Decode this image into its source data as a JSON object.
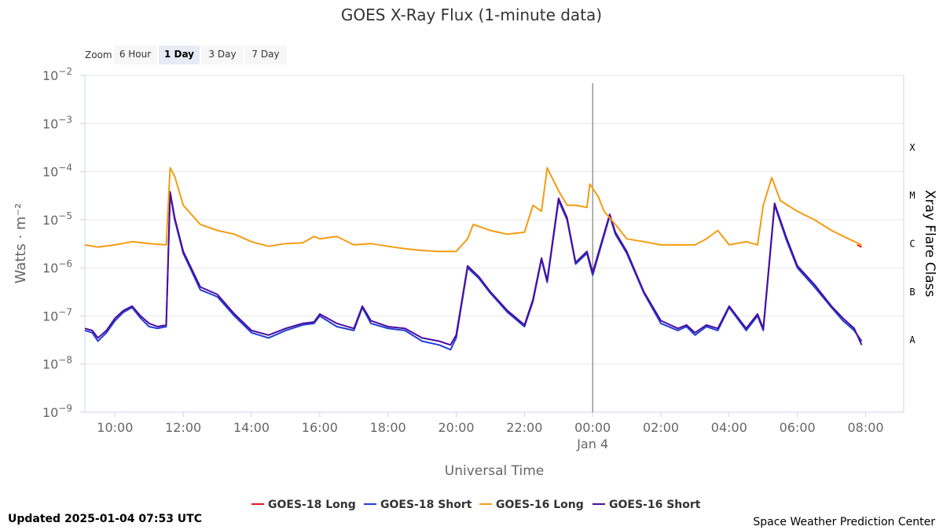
{
  "header": {
    "title": "GOES X-Ray Flux (1-minute data)"
  },
  "zoom": {
    "label": "Zoom",
    "options": [
      {
        "label": "6 Hour",
        "active": false
      },
      {
        "label": "1 Day",
        "active": true
      },
      {
        "label": "3 Day",
        "active": false
      },
      {
        "label": "7 Day",
        "active": false
      }
    ]
  },
  "footer": {
    "updated": "Updated 2025-01-04 07:53 UTC",
    "credit": "Space Weather Prediction Center"
  },
  "chart_data": {
    "type": "line",
    "title": "GOES X-Ray Flux (1-minute data)",
    "xlabel": "Universal Time",
    "ylabel": "Watts · m⁻²",
    "y_scale": "log",
    "ylim": [
      1e-09,
      0.01
    ],
    "xlim": [
      "2025-01-03 09:07",
      "2025-01-04 09:07"
    ],
    "x_ticks": [
      "10:00",
      "12:00",
      "14:00",
      "16:00",
      "18:00",
      "20:00",
      "22:00",
      "00:00",
      "02:00",
      "04:00",
      "06:00",
      "08:00"
    ],
    "x_tick_times": [
      "2025-01-03 10:00",
      "2025-01-03 12:00",
      "2025-01-03 14:00",
      "2025-01-03 16:00",
      "2025-01-03 18:00",
      "2025-01-03 20:00",
      "2025-01-03 22:00",
      "2025-01-04 00:00",
      "2025-01-04 02:00",
      "2025-01-04 04:00",
      "2025-01-04 06:00",
      "2025-01-04 08:00"
    ],
    "date_label": {
      "text": "Jan 4",
      "time": "2025-01-04 00:00"
    },
    "y_ticks": [
      {
        "base": "10",
        "exp": "−9",
        "value": 1e-09
      },
      {
        "base": "10",
        "exp": "−8",
        "value": 1e-08
      },
      {
        "base": "10",
        "exp": "−7",
        "value": 1e-07
      },
      {
        "base": "10",
        "exp": "−6",
        "value": 1e-06
      },
      {
        "base": "10",
        "exp": "−5",
        "value": 1e-05
      },
      {
        "base": "10",
        "exp": "−4",
        "value": 0.0001
      },
      {
        "base": "10",
        "exp": "−3",
        "value": 0.001
      },
      {
        "base": "10",
        "exp": "−2",
        "value": 0.01
      }
    ],
    "flare_class_axis": {
      "title": "Xray Flare Class",
      "classes": [
        {
          "label": "A",
          "value": 3.16e-08
        },
        {
          "label": "B",
          "value": 3.16e-07
        },
        {
          "label": "C",
          "value": 3.16e-06
        },
        {
          "label": "M",
          "value": 3.16e-05
        },
        {
          "label": "X",
          "value": 0.000316
        }
      ]
    },
    "day_boundary": "2025-01-04 00:00",
    "grid": true,
    "legend_position": "bottom-center",
    "series": [
      {
        "name": "GOES-18 Long",
        "color": "#e41a1c",
        "x": [
          "2025-01-04 07:45",
          "2025-01-04 07:53"
        ],
        "y": [
          3e-06,
          2.7e-06
        ]
      },
      {
        "name": "GOES-18 Short",
        "color": "#1f3fd6",
        "x": [
          "2025-01-03 09:07",
          "2025-01-03 09:20",
          "2025-01-03 09:30",
          "2025-01-03 09:45",
          "2025-01-03 10:00",
          "2025-01-03 10:15",
          "2025-01-03 10:30",
          "2025-01-03 10:45",
          "2025-01-03 11:00",
          "2025-01-03 11:15",
          "2025-01-03 11:30",
          "2025-01-03 11:37",
          "2025-01-03 11:45",
          "2025-01-03 12:00",
          "2025-01-03 12:30",
          "2025-01-03 13:00",
          "2025-01-03 13:30",
          "2025-01-03 14:00",
          "2025-01-03 14:30",
          "2025-01-03 15:00",
          "2025-01-03 15:30",
          "2025-01-03 15:50",
          "2025-01-03 16:00",
          "2025-01-03 16:30",
          "2025-01-03 17:00",
          "2025-01-03 17:15",
          "2025-01-03 17:30",
          "2025-01-03 18:00",
          "2025-01-03 18:30",
          "2025-01-03 19:00",
          "2025-01-03 19:30",
          "2025-01-03 19:50",
          "2025-01-03 20:00",
          "2025-01-03 20:20",
          "2025-01-03 20:40",
          "2025-01-03 21:00",
          "2025-01-03 21:30",
          "2025-01-03 22:00",
          "2025-01-03 22:15",
          "2025-01-03 22:30",
          "2025-01-03 22:40",
          "2025-01-03 23:00",
          "2025-01-03 23:15",
          "2025-01-03 23:30",
          "2025-01-03 23:50",
          "2025-01-04 00:00",
          "2025-01-04 00:30",
          "2025-01-04 00:40",
          "2025-01-04 01:00",
          "2025-01-04 01:30",
          "2025-01-04 02:00",
          "2025-01-04 02:30",
          "2025-01-04 02:45",
          "2025-01-04 03:00",
          "2025-01-04 03:20",
          "2025-01-04 03:40",
          "2025-01-04 04:00",
          "2025-01-04 04:30",
          "2025-01-04 04:50",
          "2025-01-04 05:00",
          "2025-01-04 05:20",
          "2025-01-04 05:40",
          "2025-01-04 06:00",
          "2025-01-04 06:30",
          "2025-01-04 07:00",
          "2025-01-04 07:20",
          "2025-01-04 07:40",
          "2025-01-04 07:53"
        ],
        "y": [
          5e-08,
          4.5e-08,
          3e-08,
          4.5e-08,
          8e-08,
          1.2e-07,
          1.5e-07,
          9e-08,
          6e-08,
          5.5e-08,
          6e-08,
          3.5e-05,
          1e-05,
          2e-06,
          3.5e-07,
          2.5e-07,
          1e-07,
          4.5e-08,
          3.5e-08,
          5e-08,
          6.5e-08,
          7e-08,
          1e-07,
          6e-08,
          5e-08,
          1.5e-07,
          7e-08,
          5.5e-08,
          5e-08,
          3e-08,
          2.5e-08,
          2e-08,
          3.5e-08,
          1e-06,
          6e-07,
          3e-07,
          1.2e-07,
          6e-08,
          2e-07,
          1.5e-06,
          5e-07,
          2.5e-05,
          1e-05,
          1.2e-06,
          2e-06,
          7e-07,
          1.2e-05,
          5e-06,
          2e-06,
          3e-07,
          7e-08,
          5e-08,
          6e-08,
          4e-08,
          6e-08,
          5e-08,
          1.5e-07,
          5e-08,
          1e-07,
          5e-08,
          2e-05,
          4e-06,
          1e-06,
          4e-07,
          1.5e-07,
          8e-08,
          5e-08,
          3e-08
        ]
      },
      {
        "name": "GOES-16 Long",
        "color": "#f39c12",
        "x": [
          "2025-01-03 09:07",
          "2025-01-03 09:30",
          "2025-01-03 10:00",
          "2025-01-03 10:30",
          "2025-01-03 11:00",
          "2025-01-03 11:30",
          "2025-01-03 11:37",
          "2025-01-03 11:45",
          "2025-01-03 12:00",
          "2025-01-03 12:30",
          "2025-01-03 13:00",
          "2025-01-03 13:30",
          "2025-01-03 14:00",
          "2025-01-03 14:30",
          "2025-01-03 15:00",
          "2025-01-03 15:30",
          "2025-01-03 15:50",
          "2025-01-03 16:00",
          "2025-01-03 16:30",
          "2025-01-03 17:00",
          "2025-01-03 17:30",
          "2025-01-03 18:00",
          "2025-01-03 18:30",
          "2025-01-03 19:00",
          "2025-01-03 19:30",
          "2025-01-03 20:00",
          "2025-01-03 20:20",
          "2025-01-03 20:30",
          "2025-01-03 21:00",
          "2025-01-03 21:30",
          "2025-01-03 22:00",
          "2025-01-03 22:15",
          "2025-01-03 22:30",
          "2025-01-03 22:40",
          "2025-01-03 23:00",
          "2025-01-03 23:15",
          "2025-01-03 23:30",
          "2025-01-03 23:50",
          "2025-01-03 23:55",
          "2025-01-04 00:10",
          "2025-01-04 00:20",
          "2025-01-04 00:40",
          "2025-01-04 01:00",
          "2025-01-04 01:30",
          "2025-01-04 02:00",
          "2025-01-04 02:30",
          "2025-01-04 03:00",
          "2025-01-04 03:20",
          "2025-01-04 03:40",
          "2025-01-04 04:00",
          "2025-01-04 04:30",
          "2025-01-04 04:50",
          "2025-01-04 05:00",
          "2025-01-04 05:15",
          "2025-01-04 05:30",
          "2025-01-04 06:00",
          "2025-01-04 06:30",
          "2025-01-04 07:00",
          "2025-01-04 07:30",
          "2025-01-04 07:53"
        ],
        "y": [
          3e-06,
          2.7e-06,
          3e-06,
          3.5e-06,
          3.2e-06,
          3e-06,
          0.00012,
          8e-05,
          2e-05,
          8e-06,
          6e-06,
          5e-06,
          3.5e-06,
          2.8e-06,
          3.2e-06,
          3.3e-06,
          4.5e-06,
          4e-06,
          4.5e-06,
          3e-06,
          3.2e-06,
          2.8e-06,
          2.5e-06,
          2.3e-06,
          2.2e-06,
          2.2e-06,
          4e-06,
          8e-06,
          6e-06,
          5e-06,
          5.5e-06,
          2e-05,
          1.5e-05,
          0.00012,
          4e-05,
          2e-05,
          2e-05,
          1.8e-05,
          5.5e-05,
          3e-05,
          1.5e-05,
          8e-06,
          4e-06,
          3.5e-06,
          3e-06,
          3e-06,
          3e-06,
          4e-06,
          6e-06,
          3e-06,
          3.5e-06,
          3e-06,
          2e-05,
          7.5e-05,
          2.5e-05,
          1.5e-05,
          1e-05,
          6e-06,
          4e-06,
          3e-06
        ]
      },
      {
        "name": "GOES-16 Short",
        "color": "#4b0c9e",
        "x": [
          "2025-01-03 09:07",
          "2025-01-03 09:20",
          "2025-01-03 09:30",
          "2025-01-03 09:45",
          "2025-01-03 10:00",
          "2025-01-03 10:15",
          "2025-01-03 10:30",
          "2025-01-03 10:45",
          "2025-01-03 11:00",
          "2025-01-03 11:15",
          "2025-01-03 11:30",
          "2025-01-03 11:37",
          "2025-01-03 11:45",
          "2025-01-03 12:00",
          "2025-01-03 12:30",
          "2025-01-03 13:00",
          "2025-01-03 13:30",
          "2025-01-03 14:00",
          "2025-01-03 14:30",
          "2025-01-03 15:00",
          "2025-01-03 15:30",
          "2025-01-03 15:50",
          "2025-01-03 16:00",
          "2025-01-03 16:30",
          "2025-01-03 17:00",
          "2025-01-03 17:15",
          "2025-01-03 17:30",
          "2025-01-03 18:00",
          "2025-01-03 18:30",
          "2025-01-03 19:00",
          "2025-01-03 19:30",
          "2025-01-03 19:50",
          "2025-01-03 20:00",
          "2025-01-03 20:20",
          "2025-01-03 20:40",
          "2025-01-03 21:00",
          "2025-01-03 21:30",
          "2025-01-03 22:00",
          "2025-01-03 22:15",
          "2025-01-03 22:30",
          "2025-01-03 22:40",
          "2025-01-03 23:00",
          "2025-01-03 23:15",
          "2025-01-03 23:30",
          "2025-01-03 23:50",
          "2025-01-04 00:00",
          "2025-01-04 00:30",
          "2025-01-04 00:40",
          "2025-01-04 01:00",
          "2025-01-04 01:30",
          "2025-01-04 02:00",
          "2025-01-04 02:30",
          "2025-01-04 02:45",
          "2025-01-04 03:00",
          "2025-01-04 03:20",
          "2025-01-04 03:40",
          "2025-01-04 04:00",
          "2025-01-04 04:30",
          "2025-01-04 04:50",
          "2025-01-04 05:00",
          "2025-01-04 05:20",
          "2025-01-04 05:40",
          "2025-01-04 06:00",
          "2025-01-04 06:30",
          "2025-01-04 07:00",
          "2025-01-04 07:20",
          "2025-01-04 07:40",
          "2025-01-04 07:53"
        ],
        "y": [
          5.5e-08,
          5e-08,
          3.5e-08,
          5e-08,
          9e-08,
          1.3e-07,
          1.6e-07,
          1e-07,
          7e-08,
          6e-08,
          6.5e-08,
          3.8e-05,
          1.1e-05,
          2.2e-06,
          4e-07,
          2.8e-07,
          1.1e-07,
          5e-08,
          4e-08,
          5.5e-08,
          7e-08,
          7.5e-08,
          1.1e-07,
          7e-08,
          5.5e-08,
          1.6e-07,
          8e-08,
          6e-08,
          5.5e-08,
          3.5e-08,
          3e-08,
          2.5e-08,
          4e-08,
          1.1e-06,
          6.5e-07,
          3.2e-07,
          1.3e-07,
          6.5e-08,
          2.2e-07,
          1.6e-06,
          5.5e-07,
          2.8e-05,
          1.1e-05,
          1.3e-06,
          2.2e-06,
          8e-07,
          1.3e-05,
          5.5e-06,
          2.2e-06,
          3.2e-07,
          8e-08,
          5.5e-08,
          6.5e-08,
          4.5e-08,
          6.5e-08,
          5.5e-08,
          1.6e-07,
          5.5e-08,
          1.1e-07,
          5.5e-08,
          2.2e-05,
          4.5e-06,
          1.1e-06,
          4.5e-07,
          1.6e-07,
          9e-08,
          5.5e-08,
          2.5e-08
        ]
      }
    ]
  }
}
